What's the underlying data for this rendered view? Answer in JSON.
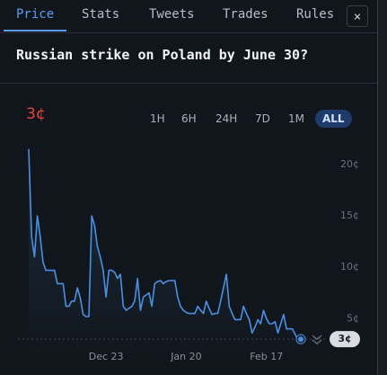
{
  "tabs": [
    "Price",
    "Stats",
    "Tweets",
    "Trades",
    "Rules"
  ],
  "close": "×",
  "title": "Russian strike on Poland by June 30?",
  "price_label": "3¢",
  "ranges": [
    "1H",
    "6H",
    "24H",
    "7D",
    "1M",
    "ALL"
  ],
  "chart_data": {
    "type": "line",
    "series": [
      {
        "name": "Price",
        "color": "#4a90e2",
        "values": [
          21.5,
          13,
          11,
          15,
          13,
          10.5,
          9.7,
          9.7,
          9.7,
          9.7,
          8.4,
          8.4,
          8.4,
          6.2,
          6.2,
          6.7,
          6.7,
          8,
          7,
          5.4,
          5.2,
          5.2,
          15,
          14,
          12,
          11,
          9.7,
          7.1,
          9.7,
          9.7,
          9.5,
          8.9,
          9.3,
          6.2,
          5.8,
          6,
          6.2,
          6.7,
          8.9,
          5.8,
          7.1,
          7.3,
          7.5,
          6.2,
          8.4,
          8.6,
          8.7,
          8.4,
          8.6,
          8.7,
          8.7,
          8.7,
          7.1,
          6.2,
          5.8,
          5.6,
          5.5,
          5.5,
          5.5,
          6.2,
          5.8,
          5.5,
          6.7,
          6,
          5.4,
          5.5,
          5.5,
          6.7,
          8,
          9.3,
          6.2,
          5.5,
          4.9,
          4.9,
          4.9,
          6.2,
          5.5,
          4.9,
          3.6,
          4.2,
          4.9,
          4.5,
          5.8,
          5,
          4.5,
          4.5,
          4.7,
          3.6,
          4.5,
          5.4,
          4,
          4,
          4,
          3.5,
          2.9,
          3
        ]
      }
    ],
    "xlim": [
      0,
      95
    ],
    "xticks": [
      {
        "value": 27,
        "label": "Dec 23"
      },
      {
        "value": 55,
        "label": "Jan 20"
      },
      {
        "value": 83,
        "label": "Feb 17"
      }
    ],
    "ylim": [
      1,
      22
    ],
    "yticks": [
      {
        "value": 5,
        "label": "5¢"
      },
      {
        "value": 10,
        "label": "10¢"
      },
      {
        "value": 15,
        "label": "15¢"
      },
      {
        "value": 20,
        "label": "20¢"
      }
    ]
  }
}
